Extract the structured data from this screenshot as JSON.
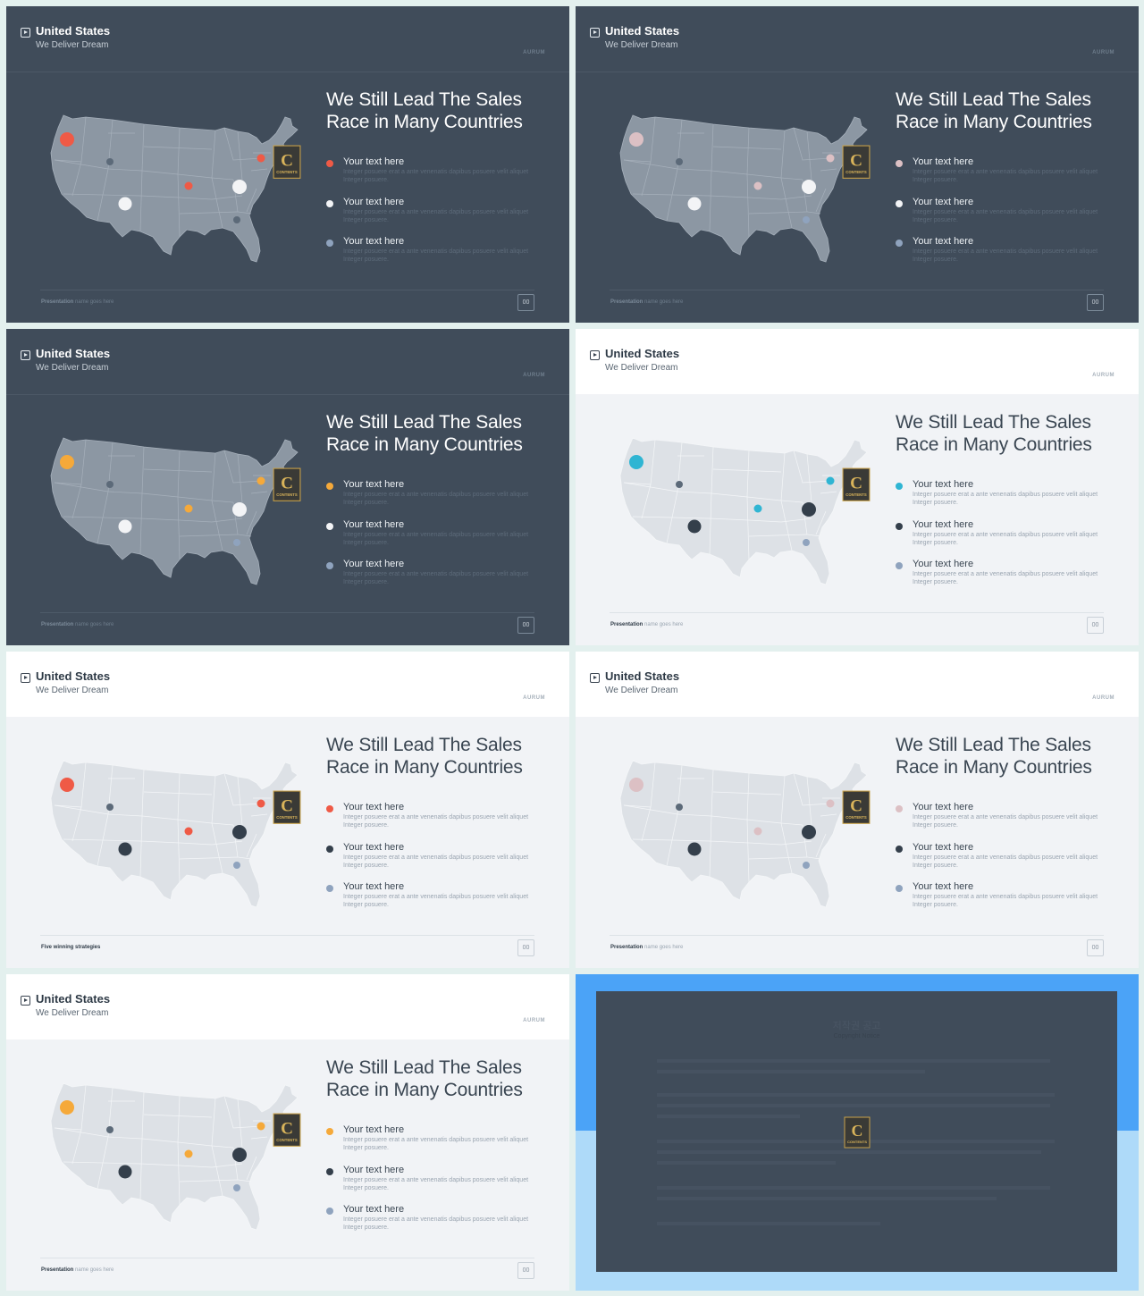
{
  "slide_header": {
    "title": "United States",
    "subtitle": "We Deliver Dream",
    "brand": "AURUM"
  },
  "headline": {
    "line1": "We Still Lead The Sales",
    "line2": "Race in Many Countries"
  },
  "items": [
    {
      "title": "Your text here",
      "desc": "Integer posuere erat a ante venenatis dapibus posuere velit aliquet Integer posuere."
    },
    {
      "title": "Your text here",
      "desc": "Integer posuere erat a ante venenatis dapibus posuere velit aliquet Integer posuere."
    },
    {
      "title": "Your text here",
      "desc": "Integer posuere erat a ante venenatis dapibus posuere velit aliquet Integer posuere."
    }
  ],
  "footer": {
    "label_bold": "Presentation",
    "label_rest": "name goes here",
    "alt_label": "Five winning strategies",
    "page": "00"
  },
  "logo": {
    "letter": "C",
    "text": "CONTENTS"
  },
  "copyright": {
    "title": "저작권 공고",
    "subtitle": "Copyright Notice"
  },
  "colors": {
    "dark_bg": "#404c5a",
    "light_bg": "#f1f3f6",
    "red": "#ef5a46",
    "pink": "#dcc0c4",
    "orange": "#f5a93a",
    "teal": "#2fb5d3",
    "white_dot": "#f3f4f6",
    "navy_dot": "#343f4b",
    "steel_dot": "#8fa3be"
  }
}
